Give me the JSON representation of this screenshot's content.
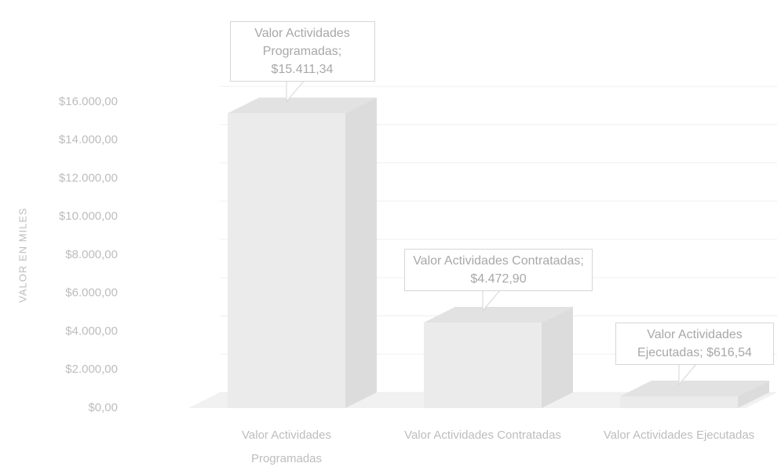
{
  "chart_data": {
    "type": "bar3d",
    "y_label": "VALOR EN MILES",
    "categories": [
      "Valor Actividades Programadas",
      "Valor Actividades Contratadas",
      "Valor Actividades Ejecutadas"
    ],
    "values": [
      15411.34,
      4472.9,
      616.54
    ],
    "value_labels": [
      "Valor Actividades Programadas; $15.411,34",
      "Valor Actividades Contratadas; $4.472,90",
      "Valor Actividades Ejecutadas; $616,54"
    ],
    "color": "#ebebeb",
    "ylim": [
      0,
      16000
    ],
    "yticks": [
      {
        "value": 0,
        "label": "$0,00"
      },
      {
        "value": 2000,
        "label": "$2.000,00"
      },
      {
        "value": 4000,
        "label": "$4.000,00"
      },
      {
        "value": 6000,
        "label": "$6.000,00"
      },
      {
        "value": 8000,
        "label": "$8.000,00"
      },
      {
        "value": 10000,
        "label": "$10.000,00"
      },
      {
        "value": 12000,
        "label": "$12.000,00"
      },
      {
        "value": 14000,
        "label": "$14.000,00"
      },
      {
        "value": 16000,
        "label": "$16.000,00"
      }
    ],
    "grid": true
  }
}
